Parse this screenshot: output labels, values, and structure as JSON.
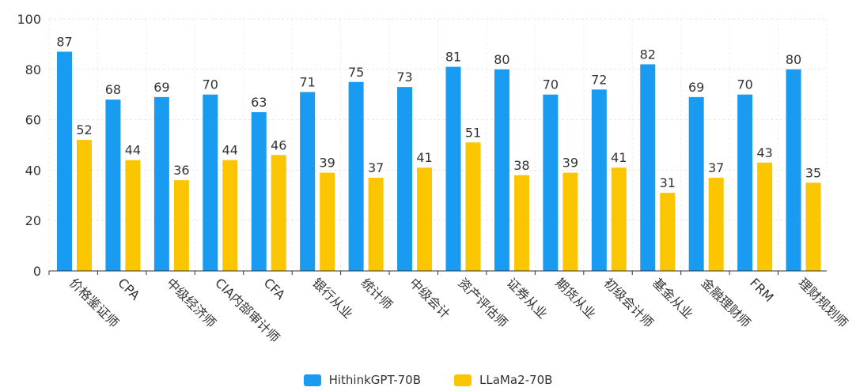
{
  "chart_data": {
    "type": "bar",
    "title": "",
    "xlabel": "",
    "ylabel": "",
    "ylim": [
      0,
      100
    ],
    "yticks": [
      0,
      20,
      40,
      60,
      80,
      100
    ],
    "grid": true,
    "legend_position": "bottom-center",
    "categories": [
      "价格鉴证师",
      "CPA",
      "中级经济师",
      "CIA内部审计师",
      "CFA",
      "银行从业",
      "统计师",
      "中级会计",
      "资产评估师",
      "证券从业",
      "期货从业",
      "初级会计师",
      "基金从业",
      "金融理财师",
      "FRM",
      "理财规划师"
    ],
    "series": [
      {
        "name": "HithinkGPT-70B",
        "color": "#1a9bf2",
        "values": [
          87,
          68,
          69,
          70,
          63,
          71,
          75,
          73,
          81,
          80,
          70,
          72,
          82,
          69,
          70,
          80
        ]
      },
      {
        "name": "LLaMa2-70B",
        "color": "#fbc500",
        "values": [
          52,
          44,
          36,
          44,
          46,
          39,
          37,
          41,
          51,
          38,
          39,
          41,
          31,
          37,
          43,
          35
        ]
      }
    ]
  }
}
